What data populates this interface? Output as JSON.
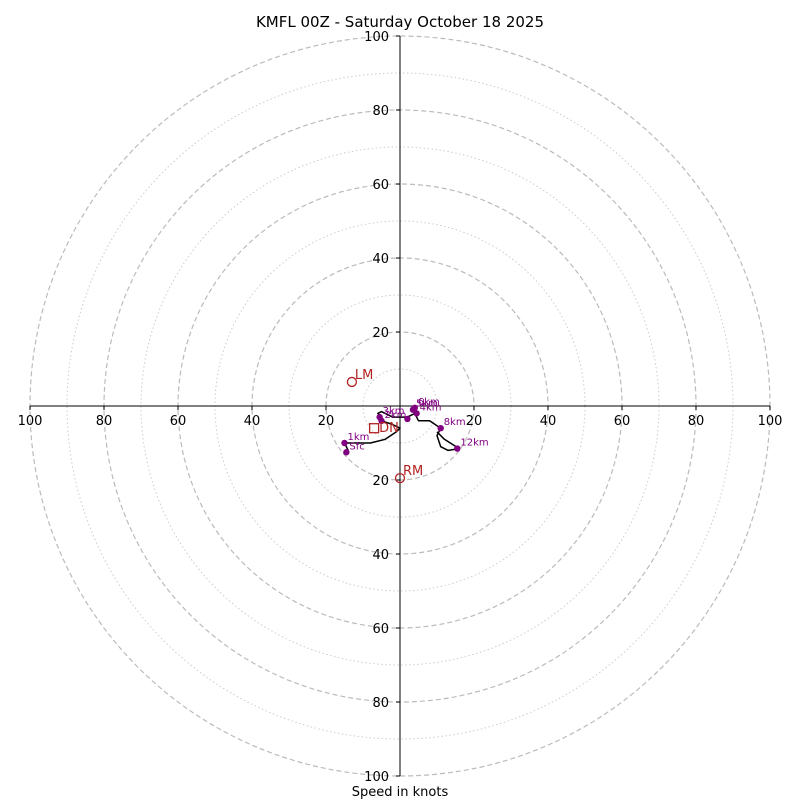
{
  "chart_data": {
    "type": "hodograph",
    "title": "KMFL 00Z - Saturday October 18 2025",
    "xlabel": "Speed in knots",
    "range": 100,
    "ring_step_major": 20,
    "ring_step_minor": 10,
    "tick_values": [
      20,
      40,
      60,
      80,
      100
    ],
    "colors": {
      "trace": "#000000",
      "height_point": "#800080",
      "motion": "#b22222",
      "grid_major": "#bbbbbb",
      "grid_minor": "#cccccc",
      "axis": "#000000"
    },
    "trace": [
      [
        -14,
        -12
      ],
      [
        -15,
        -10
      ],
      [
        -11,
        -10
      ],
      [
        -8,
        -10
      ],
      [
        -4,
        -9
      ],
      [
        -1,
        -7
      ],
      [
        0,
        -6
      ],
      [
        -2,
        -5
      ],
      [
        -5,
        -4
      ],
      [
        -5,
        -3
      ],
      [
        -6,
        -2
      ],
      [
        -5,
        -1.5
      ],
      [
        -4,
        -2
      ],
      [
        -2,
        -3
      ],
      [
        2,
        -3
      ],
      [
        4,
        -2
      ],
      [
        3.5,
        -1
      ],
      [
        5,
        -4
      ],
      [
        8,
        -4
      ],
      [
        11,
        -6
      ],
      [
        10,
        -8
      ],
      [
        11,
        -11
      ],
      [
        13,
        -12
      ],
      [
        16,
        -11.5
      ],
      [
        12,
        -9
      ],
      [
        10,
        -7
      ]
    ],
    "height_points": [
      {
        "label": "Sfc",
        "u": -14.5,
        "v": -12.5
      },
      {
        "label": "1km",
        "u": -15,
        "v": -10
      },
      {
        "label": "2km",
        "u": -5,
        "v": -4
      },
      {
        "label": "3km",
        "u": -5.5,
        "v": -3
      },
      {
        "label": "4km",
        "u": 4.5,
        "v": -2
      },
      {
        "label": "5km",
        "u": 3.5,
        "v": -1
      },
      {
        "label": "6km",
        "u": 4,
        "v": -0.5
      },
      {
        "label": "8km",
        "u": 11,
        "v": -6
      },
      {
        "label": "12km",
        "u": 15.5,
        "v": -11.5
      },
      {
        "label": "",
        "u": 2,
        "v": -3.5
      }
    ],
    "storm_motions": [
      {
        "label": "LM",
        "u": -13,
        "v": 6.5
      },
      {
        "label": "RM",
        "u": 0,
        "v": -19.5
      }
    ],
    "mean_wind": {
      "label": "DN",
      "u": -7,
      "v": -6
    }
  }
}
